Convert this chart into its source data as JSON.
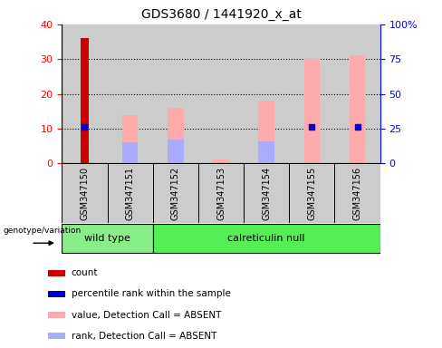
{
  "title": "GDS3680 / 1441920_x_at",
  "samples": [
    "GSM347150",
    "GSM347151",
    "GSM347152",
    "GSM347153",
    "GSM347154",
    "GSM347155",
    "GSM347156"
  ],
  "ylim_left": [
    0,
    40
  ],
  "ylim_right": [
    0,
    100
  ],
  "yticks_left": [
    0,
    10,
    20,
    30,
    40
  ],
  "yticks_right": [
    0,
    25,
    50,
    75,
    100
  ],
  "yticklabels_right": [
    "0",
    "25",
    "50",
    "75",
    "100%"
  ],
  "count_values": [
    36,
    0,
    0,
    0,
    0,
    0,
    0
  ],
  "percentile_values": [
    10.5,
    0,
    0,
    0,
    0,
    10.5,
    10.5
  ],
  "absent_value_values": [
    0,
    14,
    16,
    1.2,
    18,
    30,
    31
  ],
  "absent_rank_values": [
    0,
    6,
    7,
    0,
    6.5,
    0,
    0
  ],
  "count_color": "#cc0000",
  "percentile_color": "#0000cc",
  "absent_value_color": "#ffaaaa",
  "absent_rank_color": "#aaaaff",
  "col_bg_color": "#cccccc",
  "group_wild_color": "#88ee88",
  "group_calret_color": "#55ee55",
  "legend_items": [
    {
      "color": "#cc0000",
      "label": "count"
    },
    {
      "color": "#0000cc",
      "label": "percentile rank within the sample"
    },
    {
      "color": "#ffaaaa",
      "label": "value, Detection Call = ABSENT"
    },
    {
      "color": "#aaaaff",
      "label": "rank, Detection Call = ABSENT"
    }
  ],
  "bar_width": 0.35,
  "dot_size": 4
}
